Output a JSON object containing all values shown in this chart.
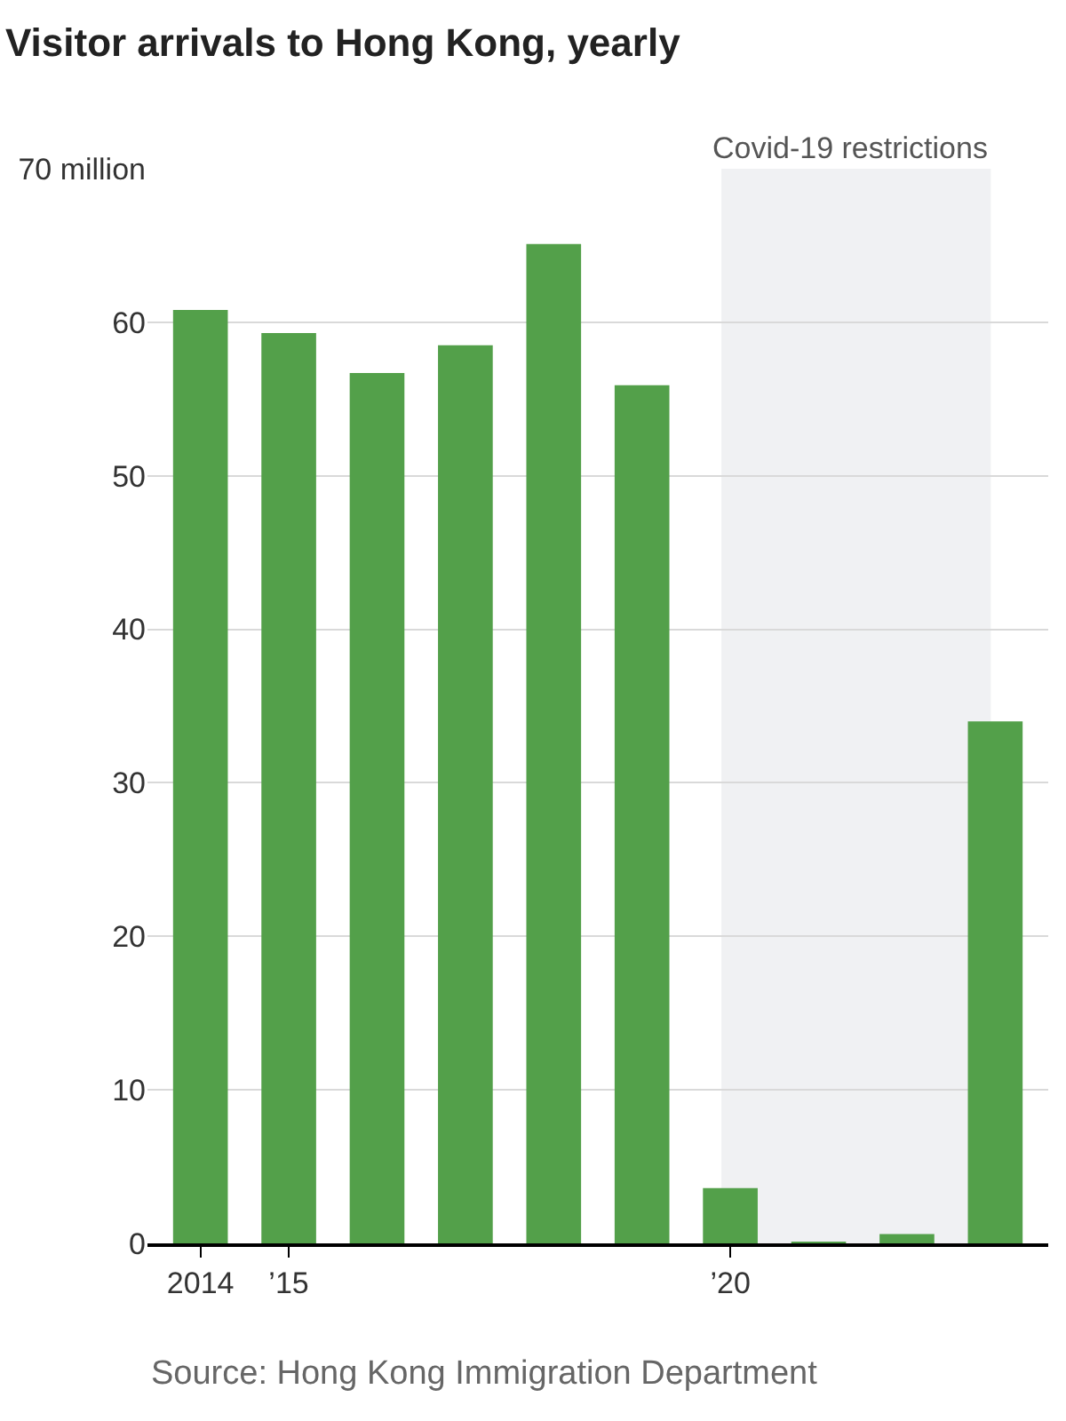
{
  "chart_data": {
    "type": "bar",
    "title": "Visitor arrivals to Hong Kong, yearly",
    "x": [
      2014,
      2015,
      2016,
      2017,
      2018,
      2019,
      2020,
      2021,
      2022,
      2023
    ],
    "values": [
      60.8,
      59.3,
      56.7,
      58.5,
      65.1,
      55.9,
      3.6,
      0.1,
      0.6,
      34.0
    ],
    "color": "#53a04a",
    "xlim": [
      2013.4,
      2023.6
    ],
    "xticks": [
      {
        "value": 2014,
        "label": "2014"
      },
      {
        "value": 2015,
        "label": "’15"
      },
      {
        "value": 2020,
        "label": "’20"
      }
    ],
    "ylim": [
      0,
      70
    ],
    "yticks": [
      0,
      10,
      20,
      30,
      40,
      50,
      60,
      {
        "value": 70,
        "label": "70 million"
      }
    ],
    "grid": "y",
    "bands": [
      {
        "axis": "x",
        "from": 2019.9,
        "to": 2022.95,
        "label": "Covid-19 restrictions",
        "color": "#f0f1f3"
      }
    ],
    "annotations": [
      "Source: Hong Kong Immigration Department"
    ]
  }
}
